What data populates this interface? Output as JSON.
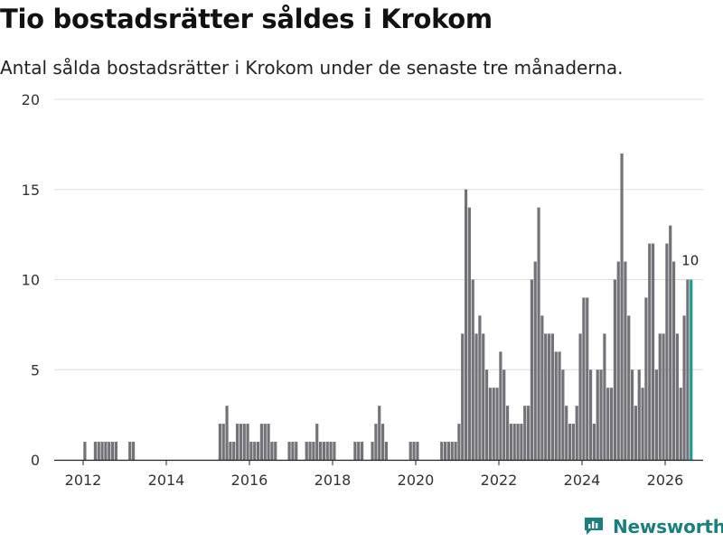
{
  "title": "Tio bostadsrätter såldes i Krokom",
  "subtitle": "Antal sålda bostadsrätter i Krokom under de senaste tre månaderna.",
  "brand": "Newsworthy",
  "colors": {
    "bar": "#737278",
    "highlight": "#1a9e94",
    "grid": "#dddddd",
    "brand": "#1a7f7f"
  },
  "chart_data": {
    "type": "bar",
    "title": "Tio bostadsrätter såldes i Krokom",
    "xlabel": "",
    "ylabel": "",
    "ylim": [
      0,
      20
    ],
    "yticks": [
      0,
      5,
      10,
      15,
      20
    ],
    "xticks": [
      "2012",
      "2014",
      "2016",
      "2018",
      "2020",
      "2022",
      "2024",
      "2026"
    ],
    "grid": true,
    "start": "2011-12",
    "x_unit": "month",
    "highlight_last": true,
    "last_label": "10",
    "values": [
      0,
      1,
      0,
      0,
      1,
      1,
      1,
      1,
      1,
      1,
      1,
      0,
      0,
      0,
      1,
      1,
      0,
      0,
      0,
      0,
      0,
      0,
      0,
      0,
      0,
      0,
      0,
      0,
      0,
      0,
      0,
      0,
      0,
      0,
      0,
      0,
      0,
      0,
      0,
      0,
      2,
      2,
      3,
      1,
      1,
      2,
      2,
      2,
      2,
      1,
      1,
      1,
      2,
      2,
      2,
      1,
      1,
      0,
      0,
      0,
      1,
      1,
      1,
      0,
      0,
      1,
      1,
      1,
      2,
      1,
      1,
      1,
      1,
      1,
      0,
      0,
      0,
      0,
      0,
      1,
      1,
      1,
      0,
      0,
      1,
      2,
      3,
      2,
      1,
      0,
      0,
      0,
      0,
      0,
      0,
      1,
      1,
      1,
      0,
      0,
      0,
      0,
      0,
      0,
      1,
      1,
      1,
      1,
      1,
      2,
      7,
      15,
      14,
      10,
      7,
      8,
      7,
      5,
      4,
      4,
      4,
      6,
      5,
      3,
      2,
      2,
      2,
      2,
      3,
      3,
      10,
      11,
      14,
      8,
      7,
      7,
      7,
      6,
      6,
      5,
      3,
      2,
      2,
      3,
      7,
      9,
      9,
      5,
      2,
      5,
      5,
      7,
      4,
      4,
      10,
      11,
      17,
      11,
      8,
      5,
      3,
      5,
      4,
      9,
      12,
      12,
      5,
      7,
      7,
      12,
      13,
      11,
      7,
      4,
      8,
      10,
      10
    ]
  }
}
